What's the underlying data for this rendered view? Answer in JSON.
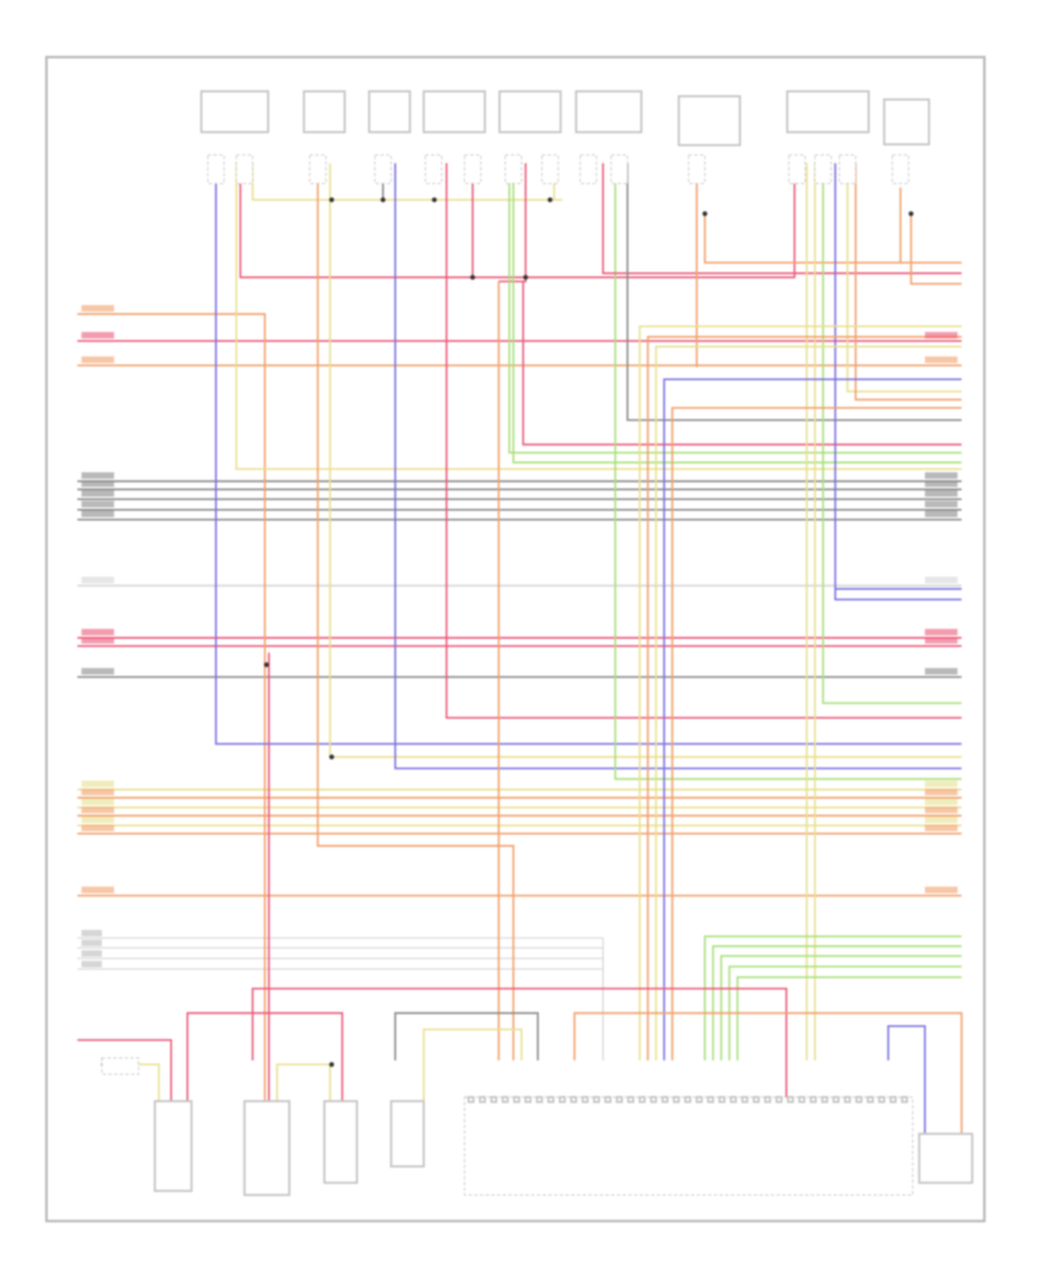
{
  "diagram": {
    "type": "wiring-schematic",
    "wire_colors": {
      "red": "#ec5a7a",
      "orange": "#f2a06a",
      "blue": "#7b72e0",
      "yellow": "#e8e090",
      "green": "#a8e07a",
      "gray": "#8a8a8a",
      "light": "#d6d6d6",
      "frame": "#b8b8b8"
    }
  }
}
